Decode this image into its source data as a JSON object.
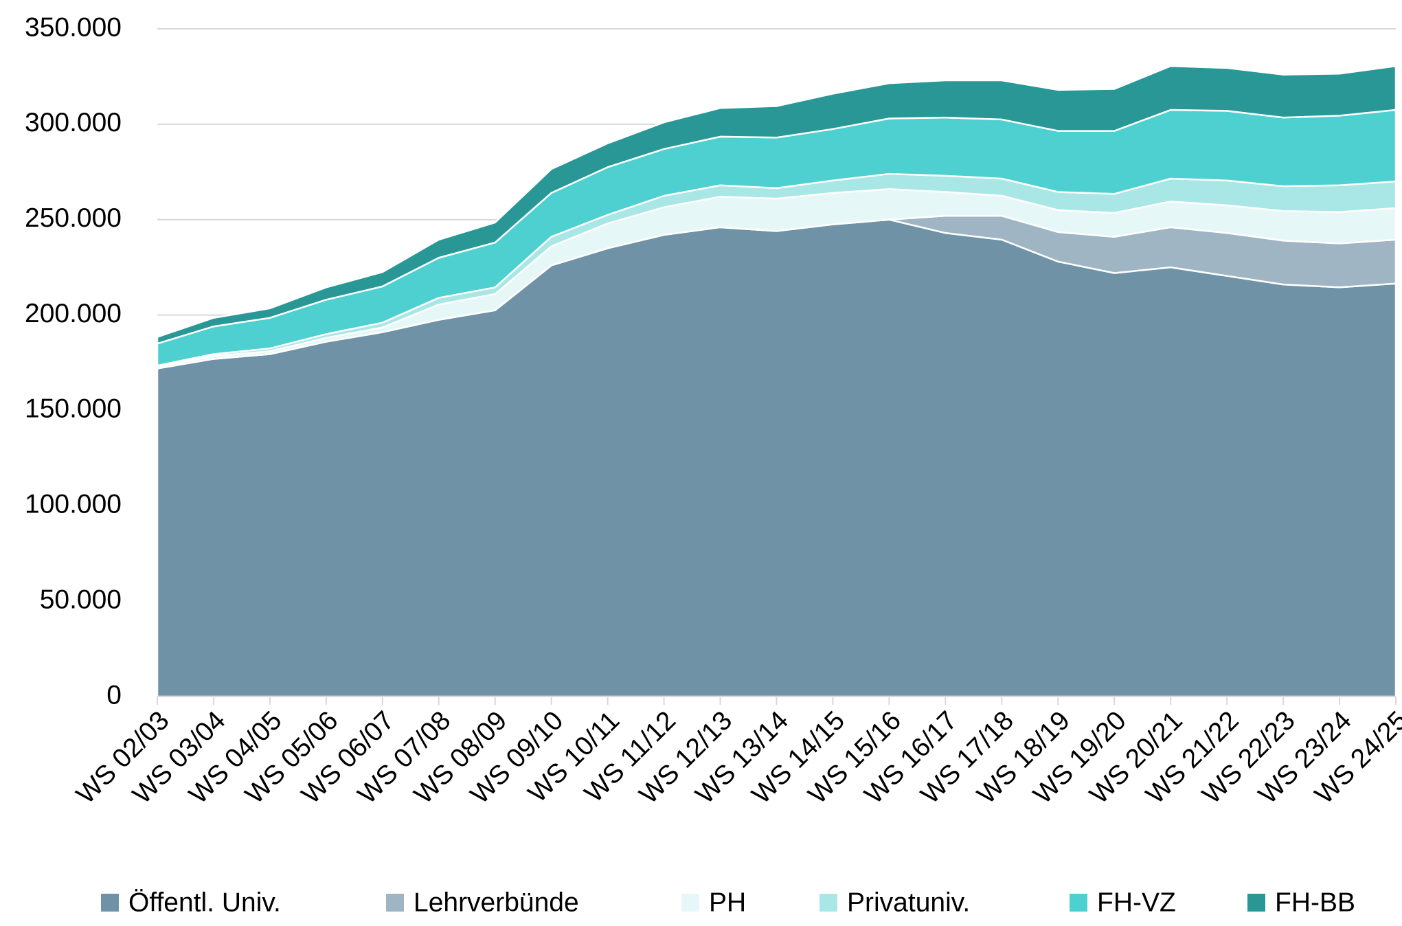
{
  "chart_data": {
    "type": "stacked_area",
    "categories": [
      "WS 02/03",
      "WS 03/04",
      "WS 04/05",
      "WS 05/06",
      "WS 06/07",
      "WS 07/08",
      "WS 08/09",
      "WS 09/10",
      "WS 10/11",
      "WS 11/12",
      "WS 12/13",
      "WS 13/14",
      "WS 14/15",
      "WS 15/16",
      "WS 16/17",
      "WS 17/18",
      "WS 18/19",
      "WS 19/20",
      "WS 20/21",
      "WS 21/22",
      "WS 22/23",
      "WS 23/24",
      "WS 24/25"
    ],
    "series": [
      {
        "name": "Öffentl. Univ.",
        "color": "#7092a6",
        "values": [
          172000,
          177000,
          179500,
          186000,
          191000,
          197500,
          202500,
          226000,
          235000,
          242000,
          246000,
          244000,
          247500,
          250000,
          243000,
          239500,
          228000,
          222000,
          225000,
          220500,
          216000,
          214500,
          216500
        ]
      },
      {
        "name": "Lehrverbünde",
        "color": "#9fb5c3",
        "values": [
          0,
          0,
          0,
          0,
          0,
          0,
          0,
          0,
          0,
          0,
          0,
          0,
          0,
          0,
          9000,
          12500,
          15500,
          19000,
          21000,
          22500,
          23000,
          23000,
          23000
        ]
      },
      {
        "name": "PH",
        "color": "#e6f7f7",
        "values": [
          1000,
          1500,
          1500,
          2000,
          2500,
          8000,
          8500,
          10000,
          13000,
          14500,
          16000,
          17000,
          16500,
          16000,
          12500,
          10500,
          11500,
          12500,
          13500,
          14500,
          15500,
          16500,
          16500
        ]
      },
      {
        "name": "Privatuniv.",
        "color": "#a9e6e6",
        "values": [
          500,
          1000,
          1500,
          2000,
          2500,
          3500,
          3500,
          5000,
          4500,
          6000,
          6000,
          5500,
          6500,
          8000,
          8500,
          9000,
          9500,
          10000,
          12000,
          13000,
          13000,
          14000,
          14000
        ]
      },
      {
        "name": "FH-VZ",
        "color": "#4ecfd0",
        "values": [
          11500,
          14500,
          16000,
          18000,
          19000,
          21000,
          23500,
          23000,
          25000,
          24500,
          25500,
          26500,
          27000,
          29000,
          30500,
          31000,
          32000,
          33000,
          36000,
          36500,
          36000,
          36500,
          37500
        ]
      },
      {
        "name": "FH-BB",
        "color": "#299796",
        "values": [
          3500,
          4500,
          5000,
          6500,
          7500,
          9500,
          10500,
          12500,
          12500,
          14000,
          15000,
          16500,
          18500,
          18500,
          19500,
          20500,
          21500,
          22000,
          23000,
          22500,
          22500,
          22000,
          23000
        ]
      }
    ],
    "ylim": [
      0,
      350000
    ],
    "yticks": [
      0,
      {
        "value": 50000,
        "label": "50.000"
      },
      {
        "value": 100000,
        "label": "100.000"
      },
      {
        "value": 150000,
        "label": "150.000"
      },
      {
        "value": 200000,
        "label": "200.000"
      },
      {
        "value": 250000,
        "label": "250.000"
      },
      {
        "value": 300000,
        "label": "300.000"
      },
      {
        "value": 350000,
        "label": "350.000"
      }
    ],
    "grid": true
  }
}
